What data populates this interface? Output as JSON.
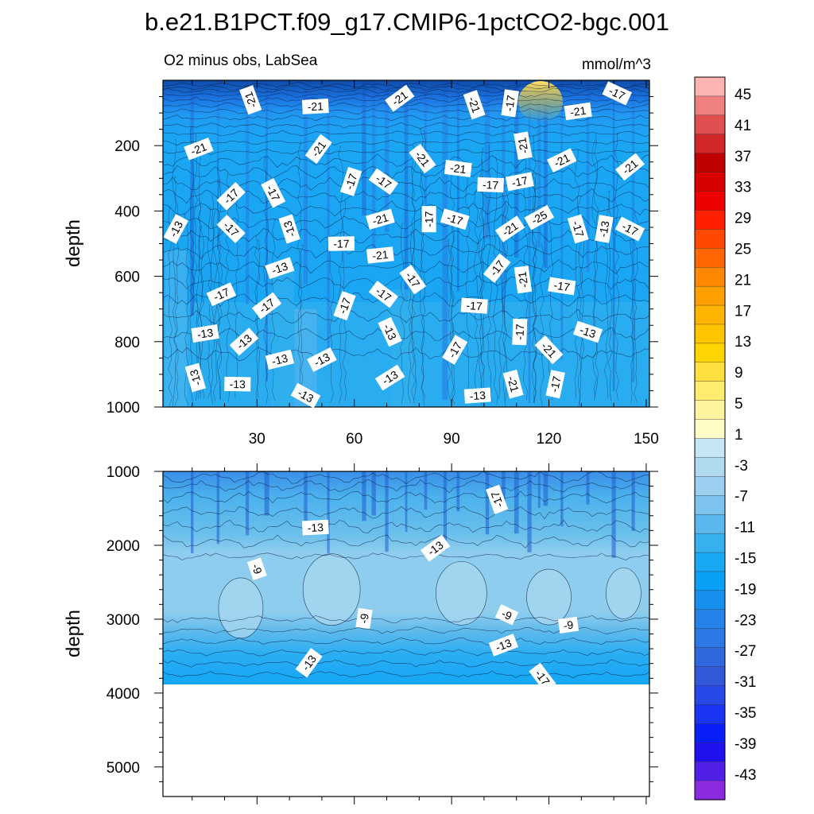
{
  "title": "b.e21.B1PCT.f09_g17.CMIP6-1pctCO2-bgc.001",
  "left_subtitle": "O2 minus obs, LabSea",
  "right_subtitle": "mmol/m^3",
  "chart_data": [
    {
      "type": "heatmap",
      "panel": "upper",
      "title": "O2 minus obs, LabSea",
      "units": "mmol/m^3",
      "xlabel": "",
      "ylabel": "depth",
      "xlim": [
        1,
        151
      ],
      "ylim": [
        1000,
        0
      ],
      "x_ticks": [
        30,
        60,
        90,
        120,
        150
      ],
      "y_ticks": [
        200,
        400,
        600,
        800,
        1000
      ],
      "contour_labels": [
        {
          "text": "-21",
          "x": 28,
          "y": 60
        },
        {
          "text": "-21",
          "x": 48,
          "y": 80
        },
        {
          "text": "-21",
          "x": 74,
          "y": 55
        },
        {
          "text": "-21",
          "x": 97,
          "y": 75
        },
        {
          "text": "-17",
          "x": 108,
          "y": 70
        },
        {
          "text": "-17",
          "x": 141,
          "y": 40
        },
        {
          "text": "-21",
          "x": 129,
          "y": 95
        },
        {
          "text": "-21",
          "x": 12,
          "y": 210
        },
        {
          "text": "-21",
          "x": 49,
          "y": 210
        },
        {
          "text": "-21",
          "x": 81,
          "y": 240
        },
        {
          "text": "-21",
          "x": 112,
          "y": 200
        },
        {
          "text": "-21",
          "x": 92,
          "y": 270
        },
        {
          "text": "-21",
          "x": 124,
          "y": 245
        },
        {
          "text": "-21",
          "x": 145,
          "y": 265
        },
        {
          "text": "-17",
          "x": 59,
          "y": 310
        },
        {
          "text": "-17",
          "x": 69,
          "y": 310
        },
        {
          "text": "-17",
          "x": 102,
          "y": 320
        },
        {
          "text": "-17",
          "x": 111,
          "y": 310
        },
        {
          "text": "-17",
          "x": 22,
          "y": 355
        },
        {
          "text": "-17",
          "x": 35,
          "y": 345
        },
        {
          "text": "-17",
          "x": 83,
          "y": 425
        },
        {
          "text": "-17",
          "x": 91,
          "y": 425
        },
        {
          "text": "-21",
          "x": 68,
          "y": 425
        },
        {
          "text": "-25",
          "x": 117,
          "y": 420
        },
        {
          "text": "-13",
          "x": 5,
          "y": 455
        },
        {
          "text": "-17",
          "x": 22,
          "y": 455
        },
        {
          "text": "-13",
          "x": 40,
          "y": 455
        },
        {
          "text": "-17",
          "x": 56,
          "y": 500
        },
        {
          "text": "-21",
          "x": 108,
          "y": 455
        },
        {
          "text": "-17",
          "x": 129,
          "y": 455
        },
        {
          "text": "-13",
          "x": 137,
          "y": 455
        },
        {
          "text": "-17",
          "x": 145,
          "y": 455
        },
        {
          "text": "-21",
          "x": 68,
          "y": 535
        },
        {
          "text": "-13",
          "x": 37,
          "y": 575
        },
        {
          "text": "-17",
          "x": 104,
          "y": 575
        },
        {
          "text": "-17",
          "x": 78,
          "y": 610
        },
        {
          "text": "-21",
          "x": 112,
          "y": 610
        },
        {
          "text": "-17",
          "x": 124,
          "y": 630
        },
        {
          "text": "-17",
          "x": 19,
          "y": 655
        },
        {
          "text": "-17",
          "x": 33,
          "y": 690
        },
        {
          "text": "-17",
          "x": 57,
          "y": 690
        },
        {
          "text": "-17",
          "x": 69,
          "y": 655
        },
        {
          "text": "-17",
          "x": 97,
          "y": 690
        },
        {
          "text": "-13",
          "x": 14,
          "y": 775
        },
        {
          "text": "-13",
          "x": 26,
          "y": 800
        },
        {
          "text": "-13",
          "x": 71,
          "y": 770
        },
        {
          "text": "-17",
          "x": 111,
          "y": 770
        },
        {
          "text": "-13",
          "x": 132,
          "y": 770
        },
        {
          "text": "-13",
          "x": 37,
          "y": 855
        },
        {
          "text": "-13",
          "x": 50,
          "y": 855
        },
        {
          "text": "-17",
          "x": 91,
          "y": 825
        },
        {
          "text": "-21",
          "x": 120,
          "y": 825
        },
        {
          "text": "-13",
          "x": 11,
          "y": 910
        },
        {
          "text": "-13",
          "x": 24,
          "y": 930
        },
        {
          "text": "-13",
          "x": 71,
          "y": 910
        },
        {
          "text": "-21",
          "x": 109,
          "y": 930
        },
        {
          "text": "-17",
          "x": 122,
          "y": 930
        },
        {
          "text": "-13",
          "x": 45,
          "y": 965
        },
        {
          "text": "-13",
          "x": 98,
          "y": 965
        }
      ]
    },
    {
      "type": "heatmap",
      "panel": "lower",
      "xlabel": "",
      "ylabel": "depth",
      "xlim": [
        1,
        151
      ],
      "ylim": [
        5400,
        1000
      ],
      "y_ticks": [
        1000,
        2000,
        3000,
        4000,
        5000
      ],
      "data_bottom_depth": 3870,
      "contour_labels": [
        {
          "text": "-17",
          "x": 104,
          "y": 1380
        },
        {
          "text": "-13",
          "x": 48,
          "y": 1760
        },
        {
          "text": "-13",
          "x": 85,
          "y": 2040
        },
        {
          "text": "-9",
          "x": 30,
          "y": 2320
        },
        {
          "text": "-9",
          "x": 63,
          "y": 2990
        },
        {
          "text": "-9",
          "x": 107,
          "y": 2940
        },
        {
          "text": "-9",
          "x": 126,
          "y": 3080
        },
        {
          "text": "-13",
          "x": 106,
          "y": 3350
        },
        {
          "text": "-13",
          "x": 46,
          "y": 3590
        },
        {
          "text": "-17",
          "x": 118,
          "y": 3790
        }
      ]
    }
  ],
  "colorbar": {
    "labels": [
      "45",
      "41",
      "37",
      "33",
      "29",
      "25",
      "21",
      "17",
      "13",
      "9",
      "5",
      "1",
      "-3",
      "-7",
      "-11",
      "-15",
      "-19",
      "-23",
      "-27",
      "-31",
      "-35",
      "-39",
      "-43"
    ],
    "colors": [
      "#ffb4b4",
      "#f08080",
      "#e05050",
      "#d02828",
      "#c00000",
      "#d80000",
      "#ef0000",
      "#ff2000",
      "#ff4800",
      "#ff6800",
      "#ff8800",
      "#ffa000",
      "#ffb400",
      "#ffc400",
      "#ffd400",
      "#ffe040",
      "#ffec70",
      "#fff4a0",
      "#fffcc8",
      "#c6e6f4",
      "#b0daf0",
      "#9dd0f0",
      "#7cc4ee",
      "#5ab8ec",
      "#36b0ef",
      "#18a8f4",
      "#0aa0f8",
      "#1890f0",
      "#2484ea",
      "#2c78e6",
      "#3068e0",
      "#3458da",
      "#2848e8",
      "#1a34f2",
      "#0a1ef8",
      "#2010f0",
      "#5020e8",
      "#8a2be2"
    ]
  }
}
